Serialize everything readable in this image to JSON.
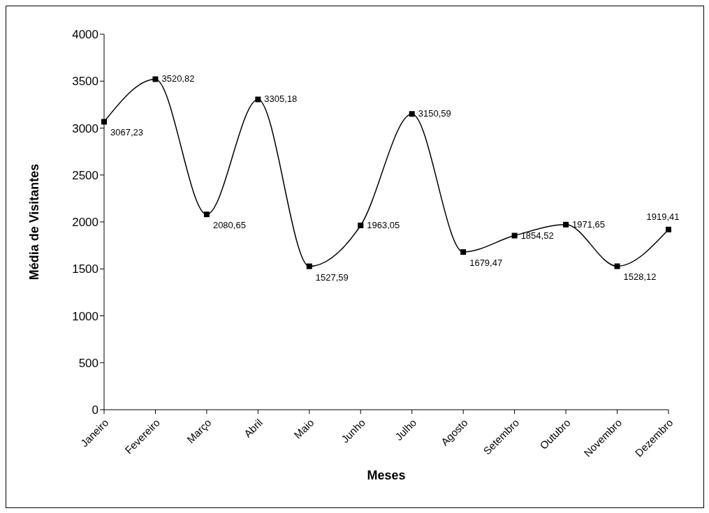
{
  "chart_data": {
    "type": "line",
    "xlabel": "Meses",
    "ylabel": "Média de Visitantes",
    "categories": [
      "Janeiro",
      "Fevereiro",
      "Março",
      "Abril",
      "Maio",
      "Junho",
      "Julho",
      "Agosto",
      "Setembro",
      "Outubro",
      "Novembro",
      "Dezembro"
    ],
    "series": [
      {
        "color": "#000000",
        "values": [
          3067.23,
          3520.82,
          2080.65,
          3305.18,
          1527.59,
          1963.05,
          3150.59,
          1679.47,
          1854.52,
          1971.65,
          1528.12,
          1919.41
        ],
        "value_labels": [
          "3067,23",
          "3520,82",
          "2080,65",
          "3305,18",
          "1527,59",
          "1963,05",
          "3150,59",
          "1679,47",
          "1854,52",
          "1971,65",
          "1528,12",
          "1919,41"
        ]
      }
    ],
    "ylim": [
      0,
      4000
    ],
    "yticks": [
      0,
      500,
      1000,
      1500,
      2000,
      2500,
      3000,
      3500,
      4000
    ],
    "grid": false,
    "legend": false,
    "marker": "square",
    "line_style": "solid"
  }
}
